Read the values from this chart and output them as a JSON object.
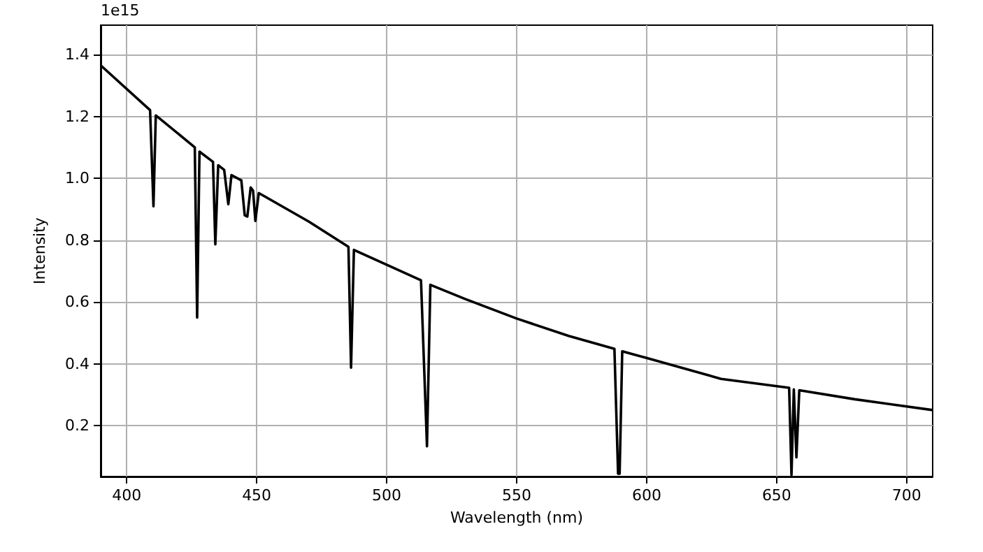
{
  "chart_data": {
    "type": "line",
    "xlabel": "Wavelength (nm)",
    "ylabel": "Intensity",
    "annotations": [
      "1e15"
    ],
    "x": [
      390,
      409,
      410.3,
      411.2,
      426.2,
      427.1,
      428,
      433.2,
      434.1,
      435.2,
      437.5,
      439.1,
      440.3,
      444.1,
      445.4,
      446.4,
      447.7,
      448.6,
      449.5,
      450.8,
      470,
      485.3,
      486.3,
      487.4,
      500,
      513.2,
      515.5,
      516.8,
      530,
      550,
      570,
      587.6,
      589,
      589.6,
      590.6,
      599.7,
      628.6,
      654.8,
      655.7,
      656.6,
      657.6,
      658.7,
      680,
      710
    ],
    "series": [
      {
        "color": "#000000",
        "values": [
          1.365,
          1.22,
          0.909,
          1.203,
          1.1,
          0.549,
          1.086,
          1.053,
          0.786,
          1.042,
          1.027,
          0.916,
          1.01,
          0.993,
          0.88,
          0.876,
          0.97,
          0.96,
          0.862,
          0.952,
          0.86,
          0.778,
          0.387,
          0.768,
          0.72,
          0.67,
          0.133,
          0.655,
          0.61,
          0.546,
          0.49,
          0.448,
          0.044,
          0.044,
          0.44,
          0.419,
          0.351,
          0.322,
          0.04,
          0.317,
          0.097,
          0.314,
          0.285,
          0.25
        ]
      }
    ],
    "xlim": [
      390,
      710
    ],
    "xticks": [
      400,
      450,
      500,
      550,
      600,
      650,
      700
    ],
    "ylim": [
      0.035,
      1.495
    ],
    "yticks": [
      0.2,
      0.4,
      0.6,
      0.8,
      {
        "value": 1,
        "label": "1.0"
      },
      1.2,
      1.4
    ],
    "grid": true,
    "marker": "none",
    "line_style": "solid"
  }
}
